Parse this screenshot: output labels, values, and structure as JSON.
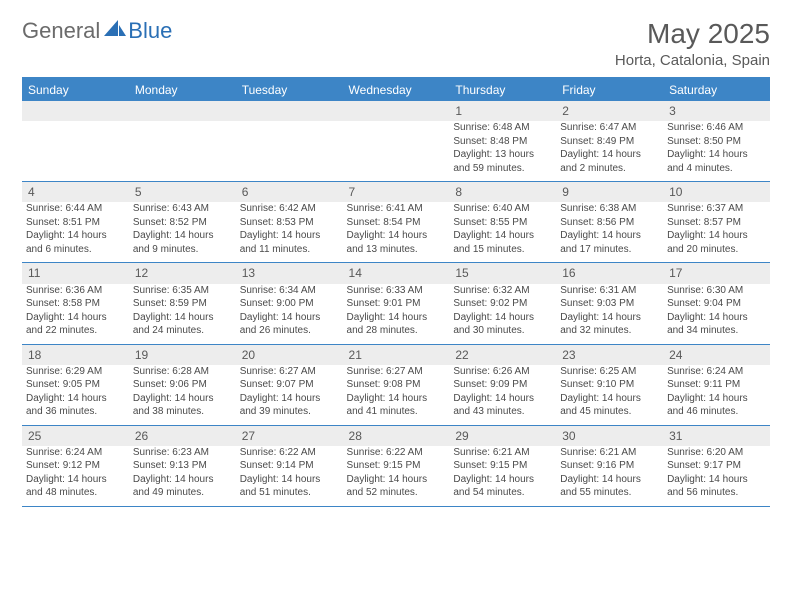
{
  "brand": {
    "part1": "General",
    "part2": "Blue"
  },
  "title": "May 2025",
  "location": "Horta, Catalonia, Spain",
  "colors": {
    "header_bg": "#3d85c6",
    "header_text": "#ffffff",
    "daynum_bg": "#ededed",
    "text": "#4a4a4a",
    "brand_gray": "#6b6b6b",
    "brand_blue": "#2a6fb5"
  },
  "day_headers": [
    "Sunday",
    "Monday",
    "Tuesday",
    "Wednesday",
    "Thursday",
    "Friday",
    "Saturday"
  ],
  "weeks": [
    {
      "nums": [
        "",
        "",
        "",
        "",
        "1",
        "2",
        "3"
      ],
      "cells": [
        null,
        null,
        null,
        null,
        {
          "sunrise": "6:48 AM",
          "sunset": "8:48 PM",
          "daylight": "13 hours and 59 minutes."
        },
        {
          "sunrise": "6:47 AM",
          "sunset": "8:49 PM",
          "daylight": "14 hours and 2 minutes."
        },
        {
          "sunrise": "6:46 AM",
          "sunset": "8:50 PM",
          "daylight": "14 hours and 4 minutes."
        }
      ]
    },
    {
      "nums": [
        "4",
        "5",
        "6",
        "7",
        "8",
        "9",
        "10"
      ],
      "cells": [
        {
          "sunrise": "6:44 AM",
          "sunset": "8:51 PM",
          "daylight": "14 hours and 6 minutes."
        },
        {
          "sunrise": "6:43 AM",
          "sunset": "8:52 PM",
          "daylight": "14 hours and 9 minutes."
        },
        {
          "sunrise": "6:42 AM",
          "sunset": "8:53 PM",
          "daylight": "14 hours and 11 minutes."
        },
        {
          "sunrise": "6:41 AM",
          "sunset": "8:54 PM",
          "daylight": "14 hours and 13 minutes."
        },
        {
          "sunrise": "6:40 AM",
          "sunset": "8:55 PM",
          "daylight": "14 hours and 15 minutes."
        },
        {
          "sunrise": "6:38 AM",
          "sunset": "8:56 PM",
          "daylight": "14 hours and 17 minutes."
        },
        {
          "sunrise": "6:37 AM",
          "sunset": "8:57 PM",
          "daylight": "14 hours and 20 minutes."
        }
      ]
    },
    {
      "nums": [
        "11",
        "12",
        "13",
        "14",
        "15",
        "16",
        "17"
      ],
      "cells": [
        {
          "sunrise": "6:36 AM",
          "sunset": "8:58 PM",
          "daylight": "14 hours and 22 minutes."
        },
        {
          "sunrise": "6:35 AM",
          "sunset": "8:59 PM",
          "daylight": "14 hours and 24 minutes."
        },
        {
          "sunrise": "6:34 AM",
          "sunset": "9:00 PM",
          "daylight": "14 hours and 26 minutes."
        },
        {
          "sunrise": "6:33 AM",
          "sunset": "9:01 PM",
          "daylight": "14 hours and 28 minutes."
        },
        {
          "sunrise": "6:32 AM",
          "sunset": "9:02 PM",
          "daylight": "14 hours and 30 minutes."
        },
        {
          "sunrise": "6:31 AM",
          "sunset": "9:03 PM",
          "daylight": "14 hours and 32 minutes."
        },
        {
          "sunrise": "6:30 AM",
          "sunset": "9:04 PM",
          "daylight": "14 hours and 34 minutes."
        }
      ]
    },
    {
      "nums": [
        "18",
        "19",
        "20",
        "21",
        "22",
        "23",
        "24"
      ],
      "cells": [
        {
          "sunrise": "6:29 AM",
          "sunset": "9:05 PM",
          "daylight": "14 hours and 36 minutes."
        },
        {
          "sunrise": "6:28 AM",
          "sunset": "9:06 PM",
          "daylight": "14 hours and 38 minutes."
        },
        {
          "sunrise": "6:27 AM",
          "sunset": "9:07 PM",
          "daylight": "14 hours and 39 minutes."
        },
        {
          "sunrise": "6:27 AM",
          "sunset": "9:08 PM",
          "daylight": "14 hours and 41 minutes."
        },
        {
          "sunrise": "6:26 AM",
          "sunset": "9:09 PM",
          "daylight": "14 hours and 43 minutes."
        },
        {
          "sunrise": "6:25 AM",
          "sunset": "9:10 PM",
          "daylight": "14 hours and 45 minutes."
        },
        {
          "sunrise": "6:24 AM",
          "sunset": "9:11 PM",
          "daylight": "14 hours and 46 minutes."
        }
      ]
    },
    {
      "nums": [
        "25",
        "26",
        "27",
        "28",
        "29",
        "30",
        "31"
      ],
      "cells": [
        {
          "sunrise": "6:24 AM",
          "sunset": "9:12 PM",
          "daylight": "14 hours and 48 minutes."
        },
        {
          "sunrise": "6:23 AM",
          "sunset": "9:13 PM",
          "daylight": "14 hours and 49 minutes."
        },
        {
          "sunrise": "6:22 AM",
          "sunset": "9:14 PM",
          "daylight": "14 hours and 51 minutes."
        },
        {
          "sunrise": "6:22 AM",
          "sunset": "9:15 PM",
          "daylight": "14 hours and 52 minutes."
        },
        {
          "sunrise": "6:21 AM",
          "sunset": "9:15 PM",
          "daylight": "14 hours and 54 minutes."
        },
        {
          "sunrise": "6:21 AM",
          "sunset": "9:16 PM",
          "daylight": "14 hours and 55 minutes."
        },
        {
          "sunrise": "6:20 AM",
          "sunset": "9:17 PM",
          "daylight": "14 hours and 56 minutes."
        }
      ]
    }
  ],
  "labels": {
    "sunrise": "Sunrise: ",
    "sunset": "Sunset: ",
    "daylight": "Daylight: "
  }
}
